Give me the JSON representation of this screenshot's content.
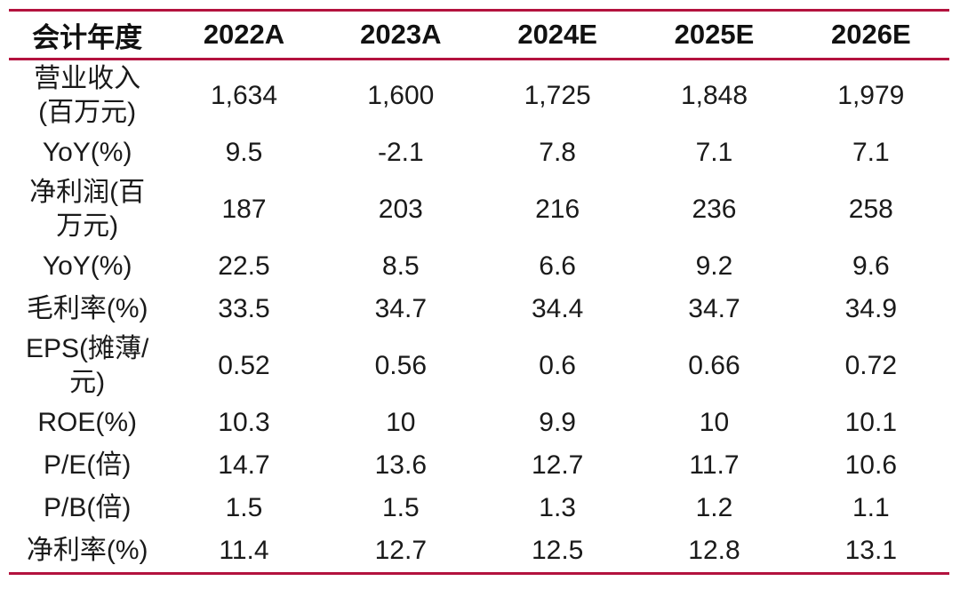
{
  "table": {
    "columns": [
      "会计年度",
      "2022A",
      "2023A",
      "2024E",
      "2025E",
      "2026E"
    ],
    "rows": [
      {
        "label": "营业收入(百万元)",
        "values": [
          "1,634",
          "1,600",
          "1,725",
          "1,848",
          "1,979"
        ]
      },
      {
        "label": "YoY(%)",
        "values": [
          "9.5",
          "-2.1",
          "7.8",
          "7.1",
          "7.1"
        ]
      },
      {
        "label": "净利润(百万元)",
        "values": [
          "187",
          "203",
          "216",
          "236",
          "258"
        ]
      },
      {
        "label": "YoY(%)",
        "values": [
          "22.5",
          "8.5",
          "6.6",
          "9.2",
          "9.6"
        ]
      },
      {
        "label": "毛利率(%)",
        "values": [
          "33.5",
          "34.7",
          "34.4",
          "34.7",
          "34.9"
        ]
      },
      {
        "label": "EPS(摊薄/元)",
        "values": [
          "0.52",
          "0.56",
          "0.6",
          "0.66",
          "0.72"
        ]
      },
      {
        "label": "ROE(%)",
        "values": [
          "10.3",
          "10",
          "9.9",
          "10",
          "10.1"
        ]
      },
      {
        "label": "P/E(倍)",
        "values": [
          "14.7",
          "13.6",
          "12.7",
          "11.7",
          "10.6"
        ]
      },
      {
        "label": "P/B(倍)",
        "values": [
          "1.5",
          "1.5",
          "1.3",
          "1.2",
          "1.1"
        ]
      },
      {
        "label": "净利率(%)",
        "values": [
          "11.4",
          "12.7",
          "12.5",
          "12.8",
          "13.1"
        ]
      }
    ]
  },
  "colors": {
    "accent": "#b3123e",
    "text": "#1a1a1a"
  }
}
